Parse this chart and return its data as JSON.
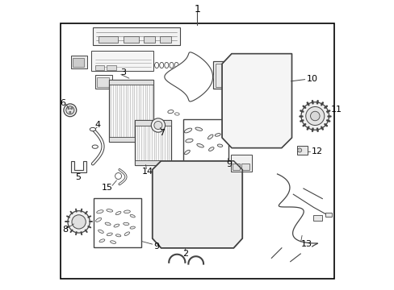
{
  "bg_color": "#ffffff",
  "border_color": "#000000",
  "line_color": "#444444",
  "components": {
    "labels": [
      "1",
      "2",
      "3",
      "4",
      "5",
      "6",
      "7",
      "8",
      "9",
      "9",
      "10",
      "11",
      "12",
      "13",
      "14",
      "15"
    ]
  }
}
